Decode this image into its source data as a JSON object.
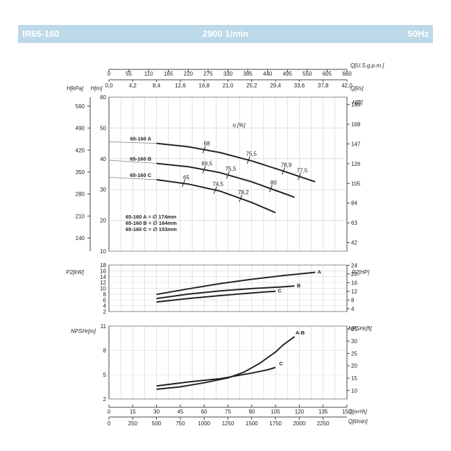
{
  "header": {
    "model": "IR65-160",
    "speed": "2900 1/min",
    "frequency": "50Hz",
    "background_color": "#bcd9ea"
  },
  "chart_data": [
    {
      "type": "line",
      "id": "head",
      "ylabel_left_1": "H[kPa]",
      "ylabel_left_2": "H[m]",
      "ylabel_right": "H[ft]",
      "xlabel_top_1": "Q[U.S.g.p.m.]",
      "xlabel_top_2": "Q[l/s]",
      "efficiency_label": "η [%]",
      "xlim": [
        0,
        150
      ],
      "ylim": [
        10,
        60
      ],
      "grid": true,
      "top_axis_gpm_ticks": [
        "0",
        "55",
        "110",
        "165",
        "220",
        "275",
        "330",
        "385",
        "440",
        "495",
        "550",
        "605",
        "660"
      ],
      "top_axis_ls_ticks": [
        "0,0",
        "4,2",
        "8,4",
        "12,6",
        "16,8",
        "21,0",
        "25,2",
        "29,4",
        "33,6",
        "37,8",
        "42,0"
      ],
      "y_ticks_m": [
        "10",
        "20",
        "30",
        "40",
        "50",
        "60"
      ],
      "y_ticks_kpa": [
        {
          "value": 140,
          "label": "140"
        },
        {
          "value": 210,
          "label": "210"
        },
        {
          "value": 280,
          "label": "280"
        },
        {
          "value": 350,
          "label": "350"
        },
        {
          "value": 420,
          "label": "420"
        },
        {
          "value": 490,
          "label": "490"
        },
        {
          "value": 560,
          "label": "560"
        }
      ],
      "y_ticks_ft": [
        {
          "value": 42,
          "label": "42"
        },
        {
          "value": 63,
          "label": "63"
        },
        {
          "value": 84,
          "label": "84"
        },
        {
          "value": 105,
          "label": "105"
        },
        {
          "value": 126,
          "label": "126"
        },
        {
          "value": 147,
          "label": "147"
        },
        {
          "value": 168,
          "label": "168"
        },
        {
          "value": 189,
          "label": "189"
        }
      ],
      "series": [
        {
          "name": "65-160 A",
          "x": [
            0,
            30,
            50,
            70,
            90,
            110,
            130
          ],
          "y": [
            45.5,
            45.0,
            43.9,
            42.0,
            39.3,
            36.0,
            32.5
          ],
          "efficiency": [
            {
              "q": 60,
              "label": "68"
            },
            {
              "q": 88,
              "label": "75,5"
            },
            {
              "q": 110,
              "label": "78,9"
            },
            {
              "q": 120,
              "label": "77,5"
            }
          ]
        },
        {
          "name": "65-160 B",
          "x": [
            0,
            30,
            50,
            70,
            90,
            110,
            117
          ],
          "y": [
            39.5,
            38.5,
            37.4,
            35.5,
            32.5,
            28.8,
            27.5
          ],
          "efficiency": [
            {
              "q": 60,
              "label": "69,5"
            },
            {
              "q": 75,
              "label": "75,5"
            },
            {
              "q": 102,
              "label": "80"
            }
          ]
        },
        {
          "name": "65-160 C",
          "x": [
            0,
            30,
            50,
            70,
            90,
            105
          ],
          "y": [
            34.0,
            33.2,
            31.8,
            29.5,
            25.8,
            22.5
          ],
          "efficiency": [
            {
              "q": 47,
              "label": "65"
            },
            {
              "q": 67,
              "label": "74,5"
            },
            {
              "q": 83,
              "label": "78,2"
            }
          ]
        }
      ],
      "impeller_notes": [
        "65-160 A = ∅ 174mm",
        "65-160 B = ∅ 164mm",
        "65-160 C = ∅ 153mm"
      ]
    },
    {
      "type": "line",
      "id": "power",
      "ylabel_left": "P2[kW]",
      "ylabel_right": "P2[HP]",
      "xlim": [
        0,
        150
      ],
      "ylim": [
        2,
        18
      ],
      "grid": true,
      "y_ticks_kw": [
        "2",
        "6",
        "10",
        "14",
        "18"
      ],
      "y_ticks_kw_minor": [
        "4",
        "8",
        "12",
        "16"
      ],
      "y_ticks_hp": [
        "4",
        "8",
        "12",
        "16",
        "20",
        "24"
      ],
      "series": [
        {
          "name": "A",
          "x": [
            30,
            50,
            70,
            90,
            110,
            130
          ],
          "y": [
            7.9,
            9.8,
            11.6,
            13.1,
            14.4,
            15.5
          ]
        },
        {
          "name": "B",
          "x": [
            30,
            50,
            70,
            90,
            110,
            117
          ],
          "y": [
            6.5,
            8.0,
            9.1,
            9.9,
            10.5,
            10.8
          ]
        },
        {
          "name": "C",
          "x": [
            30,
            50,
            70,
            90,
            105
          ],
          "y": [
            5.3,
            6.5,
            7.5,
            8.4,
            9.0
          ]
        }
      ]
    },
    {
      "type": "line",
      "id": "npsh",
      "ylabel_left": "NPSHr[m]",
      "ylabel_right": "NPSHr[ft]",
      "xlabel_bottom_1": "Q[m³/h]",
      "xlabel_bottom_2": "Q[l/min]",
      "xlim": [
        0,
        150
      ],
      "ylim": [
        2,
        11
      ],
      "grid": true,
      "y_ticks_m": [
        "2",
        "5",
        "8",
        "11"
      ],
      "y_ticks_ft": [
        "10",
        "15",
        "20",
        "25",
        "30",
        "35"
      ],
      "x_ticks_m3h": [
        "0",
        "15",
        "30",
        "45",
        "60",
        "75",
        "90",
        "105",
        "120",
        "135",
        "150"
      ],
      "x_ticks_lmin": [
        "0",
        "250",
        "500",
        "750",
        "1000",
        "1250",
        "1500",
        "1750",
        "2000",
        "2250"
      ],
      "series": [
        {
          "name": "A-B",
          "x": [
            30,
            45,
            60,
            75,
            85,
            95,
            105,
            110,
            117
          ],
          "y": [
            3.2,
            3.5,
            4.0,
            4.6,
            5.3,
            6.4,
            7.8,
            8.7,
            9.7
          ]
        },
        {
          "name": "C",
          "x": [
            30,
            50,
            70,
            90,
            100,
            105
          ],
          "y": [
            3.6,
            4.1,
            4.5,
            5.2,
            5.6,
            5.9
          ]
        }
      ]
    }
  ]
}
